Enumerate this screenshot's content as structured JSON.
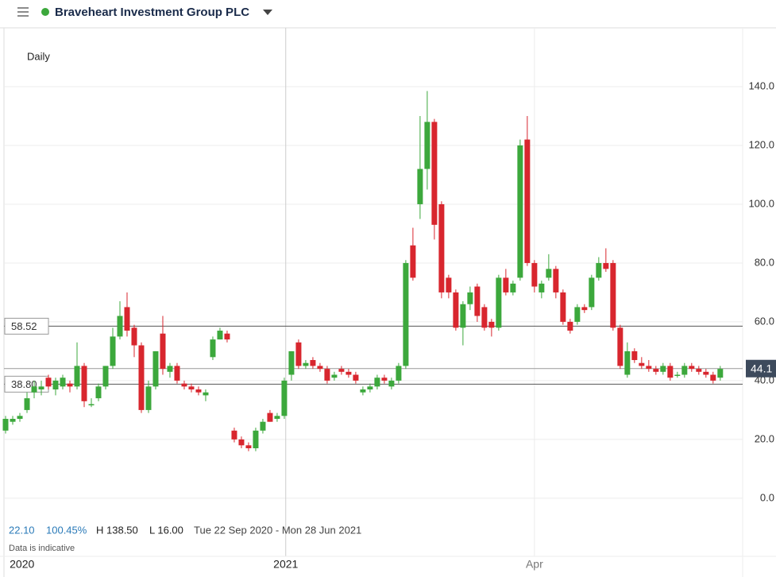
{
  "chart_data": {
    "type": "candlestick",
    "title": "Braveheart Investment Group PLC",
    "subtitle": "Daily",
    "up_color": "#3ca83c",
    "down_color": "#d8262e",
    "ylim": [
      -7.6,
      160
    ],
    "yticks": [
      {
        "value": 0,
        "label": "0.0"
      },
      {
        "value": 20,
        "label": "20.0"
      },
      {
        "value": 40,
        "label": "40.0"
      },
      {
        "value": 60,
        "label": "60.0"
      },
      {
        "value": 80,
        "label": "80.0"
      },
      {
        "value": 100,
        "label": "100.0"
      },
      {
        "value": 120,
        "label": "120.0"
      },
      {
        "value": 140,
        "label": "140.0"
      }
    ],
    "xlim": [
      -0.78,
      102.8
    ],
    "xticks": [
      {
        "value": 2.3,
        "label": "2020"
      },
      {
        "value": 39.2,
        "label": "2021"
      },
      {
        "value": 74,
        "label": "Apr"
      }
    ],
    "grid": true,
    "price_lines": [
      58.52,
      {
        "value": 38.8,
        "label": "38.80"
      }
    ],
    "last_price": 44.1,
    "ohlc": [
      [
        23,
        28,
        22,
        27
      ],
      [
        26,
        28,
        25,
        27
      ],
      [
        27,
        29,
        26,
        28
      ],
      [
        30,
        36,
        29,
        34
      ],
      [
        36,
        40,
        34,
        38
      ],
      [
        37,
        40,
        35,
        38
      ],
      [
        41,
        42,
        37,
        38
      ],
      [
        37,
        41,
        35,
        40
      ],
      [
        38,
        42,
        37,
        41
      ],
      [
        39,
        40,
        36,
        38
      ],
      [
        38,
        53,
        37,
        45
      ],
      [
        45,
        46,
        31,
        33
      ],
      [
        32,
        34,
        31,
        32
      ],
      [
        34,
        39,
        33,
        38
      ],
      [
        38,
        45,
        37,
        45
      ],
      [
        45,
        58,
        44,
        55
      ],
      [
        55,
        67,
        54,
        62
      ],
      [
        65,
        70,
        55,
        57
      ],
      [
        58,
        59,
        48,
        52
      ],
      [
        52,
        53,
        29,
        30
      ],
      [
        30,
        40,
        29,
        38
      ],
      [
        38,
        50,
        37,
        50
      ],
      [
        56,
        62,
        42,
        44
      ],
      [
        43,
        46,
        41,
        45
      ],
      [
        45,
        46,
        39,
        40
      ],
      [
        39,
        40,
        37,
        38
      ],
      [
        38,
        39,
        36,
        37
      ],
      [
        37,
        38,
        35,
        36
      ],
      [
        35,
        37,
        33,
        36
      ],
      [
        48,
        55,
        47,
        54
      ],
      [
        54,
        58,
        54,
        57
      ],
      [
        56,
        57,
        53,
        54
      ],
      [
        23,
        24,
        19,
        20
      ],
      [
        20,
        21,
        17,
        18
      ],
      [
        18,
        19,
        16,
        17
      ],
      [
        17,
        24,
        16,
        23
      ],
      [
        23,
        27,
        22,
        26
      ],
      [
        29,
        30,
        26,
        26
      ],
      [
        27,
        29,
        26,
        28
      ],
      [
        28,
        41,
        27,
        40
      ],
      [
        42,
        50,
        40,
        50
      ],
      [
        53,
        54,
        44,
        45
      ],
      [
        45,
        47,
        44,
        46
      ],
      [
        47,
        48,
        44,
        45
      ],
      [
        45,
        46,
        43,
        44
      ],
      [
        44,
        45,
        39,
        40
      ],
      [
        41,
        43,
        40,
        42
      ],
      [
        44,
        45,
        42,
        43
      ],
      [
        43,
        44,
        41,
        42
      ],
      [
        42,
        43,
        39,
        40
      ],
      [
        36,
        38,
        35,
        37
      ],
      [
        37,
        39,
        36,
        38
      ],
      [
        38,
        42,
        37,
        41
      ],
      [
        41,
        42,
        39,
        40
      ],
      [
        38,
        41,
        37,
        40
      ],
      [
        40,
        46,
        39,
        45
      ],
      [
        45,
        81,
        44,
        80
      ],
      [
        86,
        92,
        74,
        75
      ],
      [
        100,
        130,
        95,
        112
      ],
      [
        112,
        138.5,
        105,
        128
      ],
      [
        128,
        129,
        88,
        93
      ],
      [
        100,
        101,
        68,
        70
      ],
      [
        75,
        76,
        68,
        70
      ],
      [
        70,
        71,
        57,
        58
      ],
      [
        58,
        67,
        52,
        66
      ],
      [
        66,
        72,
        64,
        70
      ],
      [
        72,
        73,
        60,
        62
      ],
      [
        65,
        66,
        57,
        58
      ],
      [
        60,
        61,
        55,
        58
      ],
      [
        58,
        76,
        57,
        75
      ],
      [
        75,
        78,
        69,
        70
      ],
      [
        70,
        74,
        69,
        73
      ],
      [
        75,
        122,
        74,
        120
      ],
      [
        122,
        130,
        79,
        80
      ],
      [
        80,
        81,
        70,
        72
      ],
      [
        70,
        74,
        68,
        73
      ],
      [
        75,
        83,
        74,
        78
      ],
      [
        78,
        79,
        68,
        70
      ],
      [
        70,
        71,
        59,
        60
      ],
      [
        60,
        61,
        56,
        57
      ],
      [
        60,
        66,
        59,
        65
      ],
      [
        65,
        66,
        63,
        64
      ],
      [
        65,
        76,
        64,
        75
      ],
      [
        75,
        82,
        74,
        80
      ],
      [
        80,
        85,
        77,
        78
      ],
      [
        80,
        81,
        57,
        58
      ],
      [
        58,
        59,
        44,
        45
      ],
      [
        42,
        53,
        41,
        50
      ],
      [
        50,
        51,
        46,
        47
      ],
      [
        46,
        48,
        44,
        45
      ],
      [
        45,
        47,
        43,
        44
      ],
      [
        44,
        45,
        42,
        43
      ],
      [
        43,
        46,
        42,
        45
      ],
      [
        45,
        46,
        40,
        41
      ],
      [
        42,
        43,
        41,
        42
      ],
      [
        42,
        46,
        41,
        45
      ],
      [
        45,
        46,
        43,
        44
      ],
      [
        44,
        45,
        42,
        43
      ],
      [
        43,
        44,
        41,
        42
      ],
      [
        42,
        43,
        39,
        40
      ],
      [
        41,
        45,
        40,
        44
      ]
    ],
    "footer": {
      "change": "22.10",
      "change_pct": "100.45%",
      "high": "H 138.50",
      "low": "L 16.00",
      "range": "Tue 22 Sep 2020 - Mon 28 Jun 2021",
      "note": "Data is indicative"
    }
  }
}
